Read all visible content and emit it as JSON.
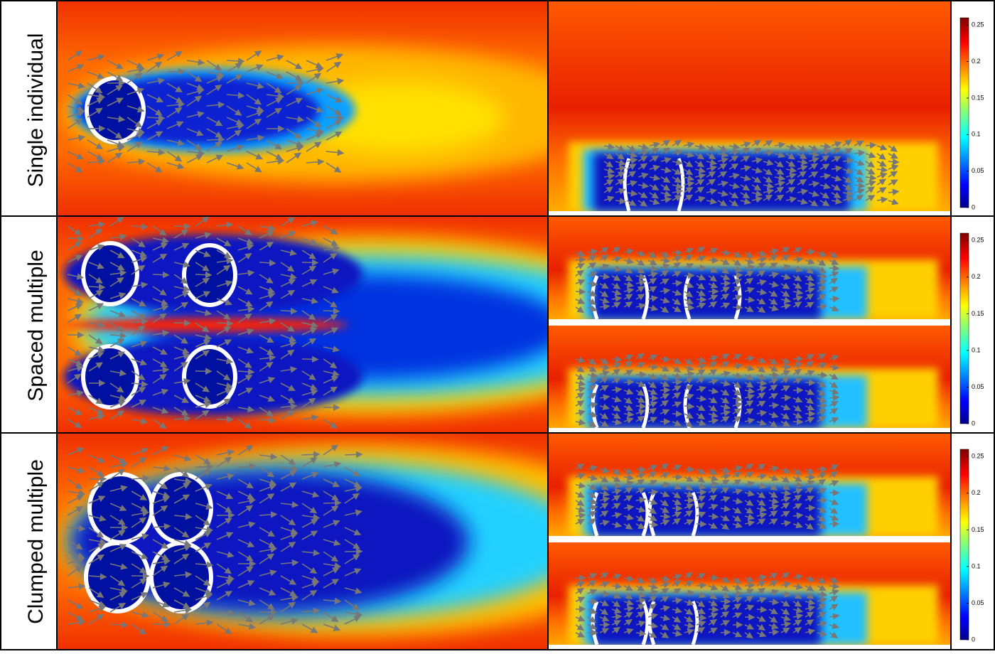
{
  "rows": [
    {
      "label": "Single individual"
    },
    {
      "label": "Spaced multiple"
    },
    {
      "label": "Clumped multiple"
    }
  ],
  "colorbar": {
    "lim": [
      0,
      0.26
    ],
    "ticks": [
      0,
      0.05,
      0.1,
      0.15,
      0.2,
      0.25
    ]
  }
}
